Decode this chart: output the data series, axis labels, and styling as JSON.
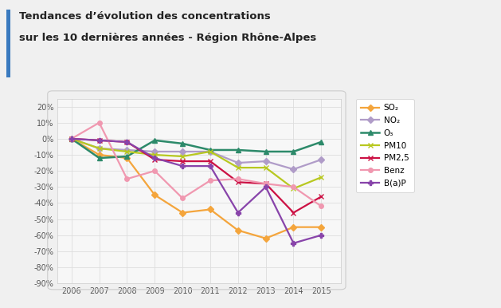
{
  "title_line1": "Tendances d’évolution des concentrations",
  "title_line2": "sur les 10 dernières années - Région Rhône-Alpes",
  "years": [
    2006,
    2007,
    2008,
    2009,
    2010,
    2011,
    2012,
    2013,
    2014,
    2015
  ],
  "series": [
    {
      "name": "SO₂",
      "color": "#f4a53c",
      "marker": "D",
      "markersize": 4,
      "linewidth": 1.6,
      "values": [
        0,
        -10,
        -12,
        -35,
        -46,
        -44,
        -57,
        -62,
        -55,
        -55
      ]
    },
    {
      "name": "NO₂",
      "color": "#b09cc8",
      "marker": "D",
      "markersize": 4,
      "linewidth": 1.6,
      "values": [
        0,
        -6,
        -7,
        -8,
        -8,
        -8,
        -15,
        -14,
        -19,
        -13
      ]
    },
    {
      "name": "O₃",
      "color": "#2d8a6a",
      "marker": "^",
      "markersize": 5,
      "linewidth": 1.8,
      "values": [
        0,
        -12,
        -11,
        -1,
        -3,
        -7,
        -7,
        -8,
        -8,
        -2
      ]
    },
    {
      "name": "PM10",
      "color": "#b8c820",
      "marker": "x",
      "markersize": 5,
      "linewidth": 1.6,
      "values": [
        0,
        -6,
        -8,
        -10,
        -11,
        -8,
        -18,
        -18,
        -31,
        -24
      ]
    },
    {
      "name": "PM2,5",
      "color": "#cc1144",
      "marker": "x",
      "markersize": 5,
      "linewidth": 1.6,
      "values": [
        0,
        -1,
        -2,
        -13,
        -14,
        -14,
        -27,
        -28,
        -46,
        -36
      ]
    },
    {
      "name": "Benz",
      "color": "#f098b0",
      "marker": "o",
      "markersize": 4,
      "linewidth": 1.6,
      "values": [
        0,
        10,
        -25,
        -20,
        -37,
        -26,
        -25,
        -28,
        -30,
        -42
      ]
    },
    {
      "name": "B(a)P",
      "color": "#8844aa",
      "marker": "P",
      "markersize": 5,
      "linewidth": 1.6,
      "values": [
        0,
        -1,
        -2,
        -12,
        -17,
        -17,
        -46,
        -30,
        -65,
        -60
      ]
    }
  ],
  "ylim": [
    -90,
    25
  ],
  "yticks": [
    20,
    10,
    0,
    -10,
    -20,
    -30,
    -40,
    -50,
    -60,
    -70,
    -80,
    -90
  ],
  "background_color": "#f0f0f0",
  "plot_bg": "#f7f7f7",
  "grid_color": "#dddddd",
  "accent_color": "#3a7abf",
  "title_color": "#222222",
  "tick_color": "#555555"
}
